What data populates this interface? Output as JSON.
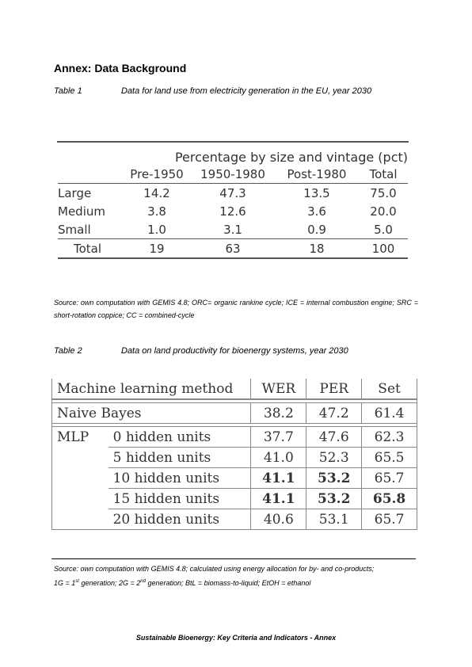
{
  "annex_title": "Annex: Data Background",
  "table1": {
    "label": "Table 1",
    "caption": "Data for land use from electricity generation in the EU, year 2030",
    "group_header": "Percentage by size and vintage (pct)",
    "columns": [
      "",
      "Pre-1950",
      "1950-1980",
      "Post-1980",
      "Total"
    ],
    "rows": [
      {
        "name": "Large",
        "values": [
          "14.2",
          "47.3",
          "13.5",
          "75.0"
        ]
      },
      {
        "name": "Medium",
        "values": [
          "3.8",
          "12.6",
          "3.6",
          "20.0"
        ]
      },
      {
        "name": "Small",
        "values": [
          "1.0",
          "3.1",
          "0.9",
          "5.0"
        ]
      }
    ],
    "total_row": {
      "name": "Total",
      "values": [
        "19",
        "63",
        "18",
        "100"
      ]
    },
    "source": "Source: own computation with GEMIS 4.8; ORC= organic rankine cycle; ICE = internal combustion engine; SRC = short-rotation coppice; CC = combined-cycle"
  },
  "table2": {
    "label": "Table 2",
    "caption": "Data on land productivity for bioenergy systems, year 2030",
    "columns": [
      "Machine learning method",
      "WER",
      "PER",
      "Set"
    ],
    "rows": [
      {
        "group": "Naive Bayes",
        "method": "",
        "values": [
          "38.2",
          "47.2",
          "61.4"
        ]
      },
      {
        "group": "MLP",
        "method": "0 hidden units",
        "values": [
          "37.7",
          "47.6",
          "62.3"
        ]
      },
      {
        "group": "",
        "method": "5 hidden units",
        "values": [
          "41.0",
          "52.3",
          "65.5"
        ]
      },
      {
        "group": "",
        "method": "10 hidden units",
        "values": [
          "41.1",
          "53.2",
          "65.7"
        ]
      },
      {
        "group": "",
        "method": "15 hidden units",
        "values": [
          "41.1",
          "53.2",
          "65.8"
        ]
      },
      {
        "group": "",
        "method": "20 hidden units",
        "values": [
          "40.6",
          "53.1",
          "65.7"
        ]
      }
    ],
    "source_line1": "Source: own computation with GEMIS 4.8; calculated using energy allocation for by- and co-products;",
    "source_line2_parts": [
      "1G = 1",
      "st",
      " generation; 2G = 2",
      "nd",
      " generation; BtL = biomass-to-liquid; EtOH = ethanol"
    ]
  },
  "footer": "Sustainable Bioenergy: Key Criteria and Indicators - Annex"
}
